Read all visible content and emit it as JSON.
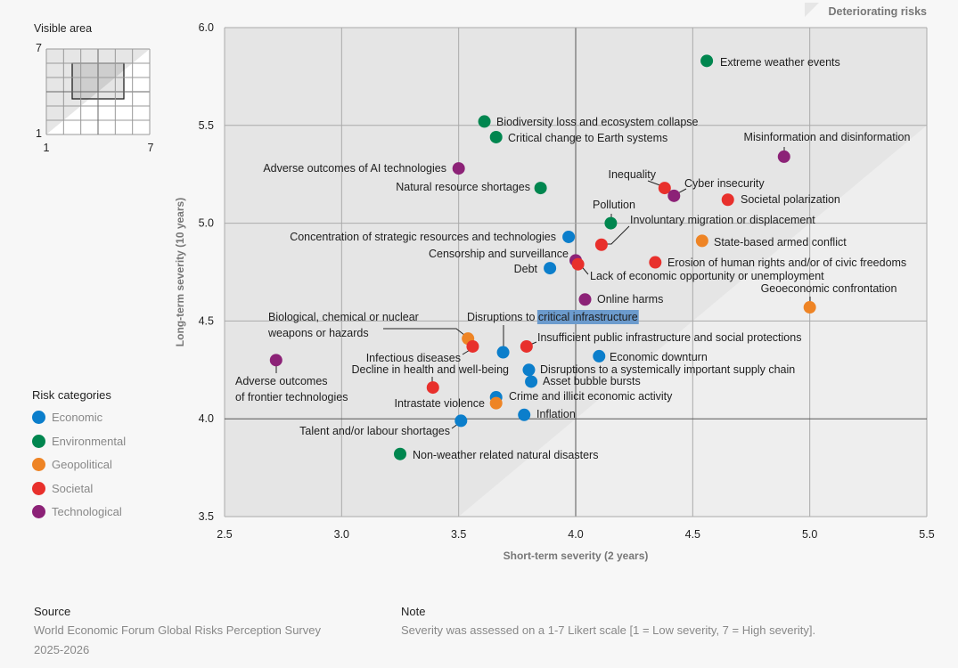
{
  "chart_data": {
    "type": "scatter",
    "xlabel": "Short-term severity (2 years)",
    "ylabel": "Long-term severity (10 years)",
    "xlim": [
      2.5,
      5.5
    ],
    "ylim": [
      3.5,
      6.0
    ],
    "xticks": [
      "2.5",
      "3.0",
      "3.5",
      "4.0",
      "4.5",
      "5.0",
      "5.5"
    ],
    "yticks": [
      "3.5",
      "4.0",
      "4.5",
      "5.0",
      "5.5",
      "6.0"
    ],
    "grid": true,
    "shaded_region_label": "Deteriorating risks",
    "categories": [
      {
        "name": "Economic",
        "color": "#0b7ecb"
      },
      {
        "name": "Environmental",
        "color": "#00864f"
      },
      {
        "name": "Geopolitical",
        "color": "#ee8425"
      },
      {
        "name": "Societal",
        "color": "#e8302c"
      },
      {
        "name": "Technological",
        "color": "#8c2277"
      }
    ],
    "points": [
      {
        "label": "Extreme weather events",
        "category": "Environmental",
        "x": 4.56,
        "y": 5.83
      },
      {
        "label": "Biodiversity loss and ecosystem collapse",
        "category": "Environmental",
        "x": 3.61,
        "y": 5.52
      },
      {
        "label": "Critical change to Earth systems",
        "category": "Environmental",
        "x": 3.66,
        "y": 5.44
      },
      {
        "label": "Misinformation and disinformation",
        "category": "Technological",
        "x": 4.89,
        "y": 5.34
      },
      {
        "label": "Adverse outcomes of AI technologies",
        "category": "Technological",
        "x": 3.5,
        "y": 5.28
      },
      {
        "label": "Natural resource shortages",
        "category": "Environmental",
        "x": 3.85,
        "y": 5.18
      },
      {
        "label": "Inequality",
        "category": "Societal",
        "x": 4.38,
        "y": 5.18
      },
      {
        "label": "Cyber insecurity",
        "category": "Technological",
        "x": 4.42,
        "y": 5.14
      },
      {
        "label": "Societal polarization",
        "category": "Societal",
        "x": 4.65,
        "y": 5.12
      },
      {
        "label": "Pollution",
        "category": "Environmental",
        "x": 4.15,
        "y": 5.0
      },
      {
        "label": "Involuntary migration or displacement",
        "category": "Societal",
        "x": 4.11,
        "y": 4.89
      },
      {
        "label": "Concentration of strategic resources and technologies",
        "category": "Economic",
        "x": 3.97,
        "y": 4.93
      },
      {
        "label": "State-based armed conflict",
        "category": "Geopolitical",
        "x": 4.54,
        "y": 4.91
      },
      {
        "label": "Censorship and surveillance",
        "category": "Technological",
        "x": 4.0,
        "y": 4.81
      },
      {
        "label": "Debt",
        "category": "Economic",
        "x": 3.89,
        "y": 4.77
      },
      {
        "label": "Erosion of human rights and/or of civic freedoms",
        "category": "Societal",
        "x": 4.34,
        "y": 4.8
      },
      {
        "label": "Lack of economic opportunity or unemployment",
        "category": "Societal",
        "x": 4.01,
        "y": 4.79
      },
      {
        "label": "Online harms",
        "category": "Technological",
        "x": 4.04,
        "y": 4.61
      },
      {
        "label": "Geoeconomic confrontation",
        "category": "Geopolitical",
        "x": 5.0,
        "y": 4.57
      },
      {
        "label": "Biological, chemical or nuclear weapons or hazards",
        "category": "Geopolitical",
        "x": 3.54,
        "y": 4.41
      },
      {
        "label": "Infectious diseases",
        "category": "Societal",
        "x": 3.56,
        "y": 4.37
      },
      {
        "label": "Disruptions to critical infrastructure",
        "category": "Economic",
        "x": 3.69,
        "y": 4.34,
        "selected_text": "critical infrastructure"
      },
      {
        "label": "Insufficient public infrastructure and social protections",
        "category": "Societal",
        "x": 3.79,
        "y": 4.37
      },
      {
        "label": "Economic downturn",
        "category": "Economic",
        "x": 4.1,
        "y": 4.32
      },
      {
        "label": "Adverse outcomes of frontier technologies",
        "category": "Technological",
        "x": 2.72,
        "y": 4.3
      },
      {
        "label": "Decline in health and well-being",
        "category": "Societal",
        "x": 3.39,
        "y": 4.16
      },
      {
        "label": "Disruptions to a systemically important supply chain",
        "category": "Economic",
        "x": 3.8,
        "y": 4.25
      },
      {
        "label": "Asset bubble bursts",
        "category": "Economic",
        "x": 3.81,
        "y": 4.19
      },
      {
        "label": "Crime and illicit economic activity",
        "category": "Economic",
        "x": 3.66,
        "y": 4.11
      },
      {
        "label": "Intrastate violence",
        "category": "Geopolitical",
        "x": 3.66,
        "y": 4.08
      },
      {
        "label": "Inflation",
        "category": "Economic",
        "x": 3.78,
        "y": 4.02
      },
      {
        "label": "Talent and/or labour shortages",
        "category": "Economic",
        "x": 3.51,
        "y": 3.99
      },
      {
        "label": "Non-weather related natural disasters",
        "category": "Environmental",
        "x": 3.25,
        "y": 3.82
      }
    ]
  },
  "inset": {
    "title": "Visible area",
    "range": [
      1,
      7
    ],
    "min_label": "1",
    "max_label": "7"
  },
  "legend": {
    "title": "Risk categories",
    "items": [
      "Economic",
      "Environmental",
      "Geopolitical",
      "Societal",
      "Technological"
    ]
  },
  "footer": {
    "source_title": "Source",
    "source_line1": "World Economic Forum Global Risks Perception Survey",
    "source_line2": "2025-2026",
    "note_title": "Note",
    "note_text": "Severity was assessed on a 1-7 Likert scale [1 = Low severity, 7 = High severity]."
  }
}
